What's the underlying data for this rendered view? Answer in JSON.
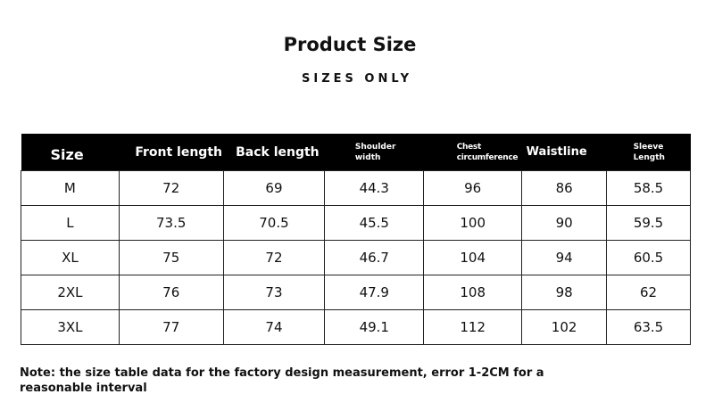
{
  "title": "Product Size",
  "subtitle": "SIZES ONLY",
  "table": {
    "headers": [
      "Size",
      "Front length",
      "Back length",
      "Shoulder width",
      "Chest circumference",
      "Waistline",
      "Sleeve Length"
    ],
    "rows": [
      [
        "M",
        "72",
        "69",
        "44.3",
        "96",
        "86",
        "58.5"
      ],
      [
        "L",
        "73.5",
        "70.5",
        "45.5",
        "100",
        "90",
        "59.5"
      ],
      [
        "XL",
        "75",
        "72",
        "46.7",
        "104",
        "94",
        "60.5"
      ],
      [
        "2XL",
        "76",
        "73",
        "47.9",
        "108",
        "98",
        "62"
      ],
      [
        "3XL",
        "77",
        "74",
        "49.1",
        "112",
        "102",
        "63.5"
      ]
    ]
  },
  "note": "Note: the size table data for the factory design measurement, error 1-2CM for a reasonable interval"
}
